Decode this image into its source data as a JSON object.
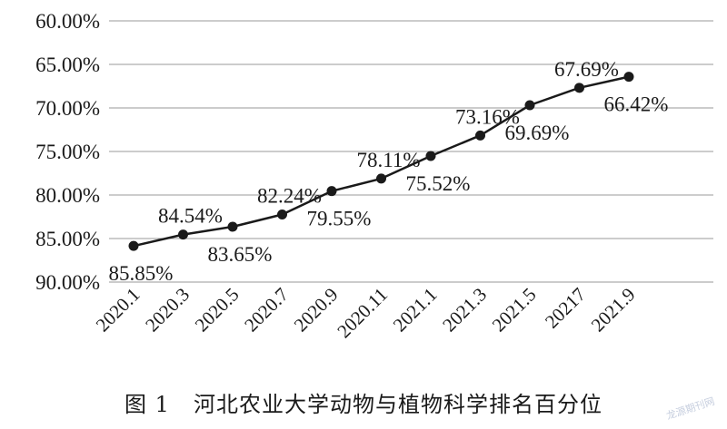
{
  "chart_data": {
    "type": "line",
    "title": "",
    "xlabel": "",
    "ylabel": "",
    "categories": [
      "2020.1",
      "2020.3",
      "2020.5",
      "2020.7",
      "2020.9",
      "2020.11",
      "2021.1",
      "2021.3",
      "2021.5",
      "20217",
      "2021.9"
    ],
    "series": [
      {
        "values": [
          85.85,
          84.54,
          83.65,
          82.24,
          79.55,
          78.11,
          75.52,
          73.16,
          69.69,
          67.69,
          66.42
        ],
        "labels": [
          "85.85%",
          "84.54%",
          "83.65%",
          "82.24%",
          "79.55%",
          "78.11%",
          "75.52%",
          "73.16%",
          "69.69%",
          "67.69%",
          "66.42%"
        ],
        "label_positions": [
          "below",
          "above",
          "below",
          "above",
          "below",
          "above",
          "below",
          "above",
          "below",
          "above",
          "below"
        ],
        "color": "#1a1a1a"
      }
    ],
    "ylim": [
      90,
      60
    ],
    "y_inverted": true,
    "y_ticks": [
      60,
      65,
      70,
      75,
      80,
      85,
      90
    ],
    "y_tick_labels": [
      "60.00%",
      "65.00%",
      "70.00%",
      "75.00%",
      "80.00%",
      "85.00%",
      "90.00%"
    ],
    "grid": "horizontal",
    "legend": "none"
  },
  "caption": {
    "figure_number": "图 1",
    "text": "河北农业大学动物与植物科学排名百分位"
  },
  "watermark": {
    "text": "龙源期刊网"
  },
  "colors": {
    "line": "#1a1a1a",
    "grid": "#9a9a9a",
    "background": "#ffffff"
  }
}
